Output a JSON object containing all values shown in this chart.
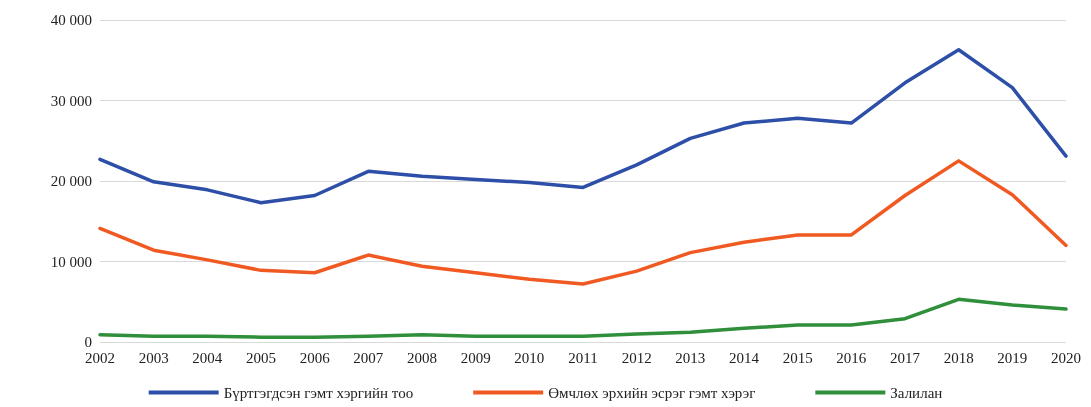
{
  "chart_data": {
    "type": "line",
    "categories": [
      "2002",
      "2003",
      "2004",
      "2005",
      "2006",
      "2007",
      "2008",
      "2009",
      "2010",
      "2011",
      "2012",
      "2013",
      "2014",
      "2015",
      "2016",
      "2017",
      "2018",
      "2019",
      "2020"
    ],
    "series": [
      {
        "name": "Бүртгэгдсэн гэмт хэргийн тоо",
        "color": "#2e4fa8",
        "values": [
          22700,
          19900,
          18900,
          17300,
          18200,
          21200,
          20600,
          20200,
          19800,
          19200,
          22000,
          25300,
          27200,
          27800,
          27200,
          32200,
          36300,
          31600,
          23100
        ]
      },
      {
        "name": "Өмчлөх эрхийн эсрэг гэмт хэрэг",
        "color": "#f05a22",
        "values": [
          14100,
          11400,
          10200,
          8900,
          8600,
          10800,
          9400,
          8600,
          7800,
          7200,
          8800,
          11100,
          12400,
          13300,
          13300,
          18200,
          22500,
          18300,
          12000
        ]
      },
      {
        "name": "Залилан",
        "color": "#2f8f3a",
        "values": [
          900,
          700,
          700,
          600,
          600,
          700,
          900,
          700,
          700,
          700,
          1000,
          1200,
          1700,
          2100,
          2100,
          2900,
          5300,
          4600,
          4100
        ]
      }
    ],
    "ylim": [
      0,
      40000
    ],
    "yticks": [
      {
        "value": 0,
        "label": "0"
      },
      {
        "value": 10000,
        "label": "10 000"
      },
      {
        "value": 20000,
        "label": "20 000"
      },
      {
        "value": 30000,
        "label": "30 000"
      },
      {
        "value": 40000,
        "label": "40 000"
      }
    ],
    "grid": "y",
    "legend": "bottom",
    "marker": "none",
    "line_style": "solid"
  }
}
